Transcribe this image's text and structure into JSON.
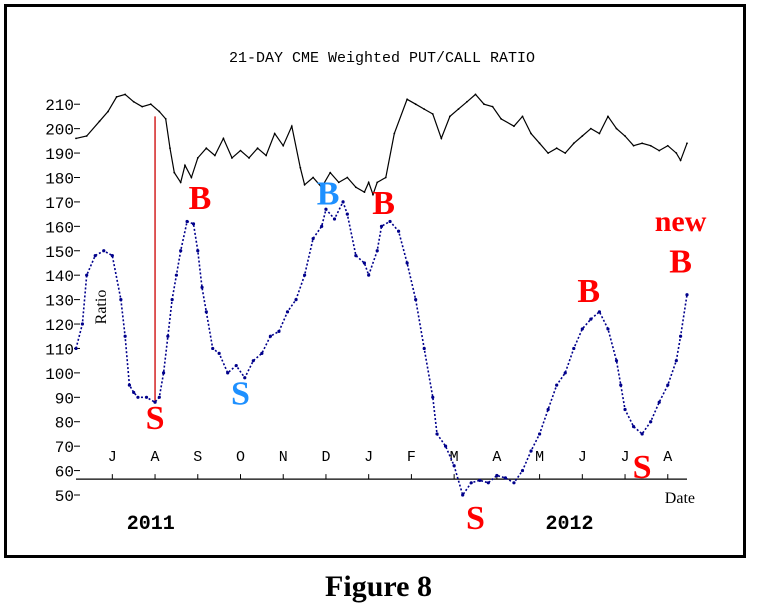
{
  "caption": "Figure 8",
  "chart_data": {
    "type": "line",
    "title": "21-DAY CME Weighted PUT/CALL RATIO",
    "xlabel": "Date",
    "ylabel": "Ratio",
    "ylim": [
      50,
      215
    ],
    "y_ticks": [
      50,
      60,
      70,
      80,
      90,
      100,
      110,
      120,
      130,
      140,
      150,
      160,
      170,
      180,
      190,
      200,
      210
    ],
    "x_ticks": [
      "J",
      "A",
      "S",
      "O",
      "N",
      "D",
      "J",
      "F",
      "M",
      "A",
      "M",
      "J",
      "J",
      "A"
    ],
    "x_tick_pos": [
      5.6,
      6.6,
      7.6,
      8.6,
      9.6,
      10.6,
      11.6,
      12.6,
      13.6,
      14.6,
      15.6,
      16.6,
      17.6,
      18.6
    ],
    "xlim": [
      4.75,
      19.05
    ],
    "year_labels": [
      {
        "text": "2011",
        "x": 6.5
      },
      {
        "text": "2012",
        "x": 16.3
      }
    ],
    "series": [
      {
        "color": "#000000",
        "style": "solid",
        "x": [
          4.75,
          5.0,
          5.3,
          5.5,
          5.7,
          5.9,
          6.1,
          6.3,
          6.5,
          6.7,
          6.85,
          6.95,
          7.05,
          7.2,
          7.3,
          7.45,
          7.6,
          7.8,
          8.0,
          8.2,
          8.4,
          8.6,
          8.8,
          9.0,
          9.2,
          9.4,
          9.6,
          9.8,
          10.0,
          10.1,
          10.3,
          10.5,
          10.7,
          10.9,
          11.1,
          11.3,
          11.5,
          11.6,
          11.7,
          11.8,
          12.0,
          12.2,
          12.5,
          12.7,
          12.9,
          13.1,
          13.3,
          13.5,
          13.7,
          13.9,
          14.1,
          14.3,
          14.5,
          14.7,
          15.0,
          15.2,
          15.4,
          15.6,
          15.8,
          16.0,
          16.2,
          16.4,
          16.6,
          16.8,
          17.0,
          17.2,
          17.4,
          17.6,
          17.8,
          18.0,
          18.2,
          18.4,
          18.6,
          18.8,
          18.9,
          19.05
        ],
        "y": [
          196,
          197,
          203,
          207,
          213,
          214,
          211,
          209,
          210,
          207,
          204,
          192,
          182,
          178,
          185,
          180,
          188,
          192,
          189,
          196,
          188,
          191,
          188,
          192,
          189,
          198,
          193,
          201,
          184,
          177,
          180,
          176,
          182,
          178,
          180,
          176,
          174,
          178,
          173,
          178,
          180,
          198,
          212,
          210,
          208,
          206,
          196,
          205,
          208,
          211,
          214,
          210,
          209,
          204,
          201,
          205,
          198,
          194,
          190,
          192,
          190,
          194,
          197,
          200,
          198,
          205,
          200,
          197,
          193,
          194,
          193,
          191,
          193,
          190,
          187,
          194
        ]
      },
      {
        "color": "#00008b",
        "style": "dotted",
        "x": [
          4.75,
          4.9,
          5.0,
          5.2,
          5.4,
          5.6,
          5.8,
          5.9,
          6.0,
          6.1,
          6.2,
          6.4,
          6.6,
          6.7,
          6.8,
          6.9,
          7.0,
          7.1,
          7.2,
          7.35,
          7.5,
          7.6,
          7.7,
          7.8,
          7.95,
          8.1,
          8.3,
          8.5,
          8.7,
          8.9,
          9.1,
          9.3,
          9.5,
          9.7,
          9.9,
          10.1,
          10.3,
          10.5,
          10.6,
          10.8,
          11.0,
          11.1,
          11.3,
          11.5,
          11.6,
          11.8,
          11.9,
          12.1,
          12.3,
          12.5,
          12.7,
          12.9,
          13.1,
          13.2,
          13.4,
          13.6,
          13.8,
          14.0,
          14.2,
          14.4,
          14.6,
          14.8,
          15.0,
          15.2,
          15.4,
          15.6,
          15.8,
          16.0,
          16.2,
          16.4,
          16.6,
          16.8,
          17.0,
          17.2,
          17.4,
          17.5,
          17.6,
          17.8,
          18.0,
          18.2,
          18.4,
          18.6,
          18.8,
          18.9,
          19.05
        ],
        "y": [
          110,
          120,
          140,
          148,
          150,
          148,
          130,
          115,
          95,
          92,
          90,
          90,
          88,
          90,
          100,
          115,
          130,
          140,
          150,
          162,
          161,
          150,
          135,
          125,
          110,
          108,
          100,
          103,
          98,
          105,
          108,
          115,
          117,
          125,
          130,
          140,
          155,
          160,
          167,
          163,
          170,
          165,
          148,
          145,
          140,
          150,
          160,
          162,
          158,
          145,
          130,
          110,
          90,
          75,
          70,
          62,
          50,
          55,
          56,
          55,
          58,
          57,
          55,
          60,
          68,
          75,
          85,
          95,
          100,
          110,
          118,
          122,
          125,
          118,
          105,
          95,
          85,
          78,
          75,
          80,
          88,
          95,
          105,
          115,
          132
        ]
      }
    ],
    "annotations": [
      {
        "text": "S",
        "color": "#ff0000",
        "x": 6.6,
        "y": 77
      },
      {
        "text": "B",
        "color": "#ff0000",
        "x": 7.65,
        "y": 167
      },
      {
        "text": "S",
        "color": "#1e90ff",
        "x": 8.6,
        "y": 87
      },
      {
        "text": "B",
        "color": "#1e90ff",
        "x": 10.65,
        "y": 169
      },
      {
        "text": "B",
        "color": "#ff0000",
        "x": 11.95,
        "y": 165
      },
      {
        "text": "S",
        "color": "#ff0000",
        "x": 14.1,
        "y": 36
      },
      {
        "text": "B",
        "color": "#ff0000",
        "x": 16.75,
        "y": 129
      },
      {
        "text": "S",
        "color": "#ff0000",
        "x": 18.0,
        "y": 57
      },
      {
        "text": "new",
        "color": "#ff0000",
        "x": 18.9,
        "y": 158
      },
      {
        "text": "B",
        "color": "#ff0000",
        "x": 18.9,
        "y": 141
      }
    ],
    "marker_line": {
      "color": "#cc0000",
      "x": 6.6,
      "y_from": 88,
      "y_to": 205
    }
  }
}
